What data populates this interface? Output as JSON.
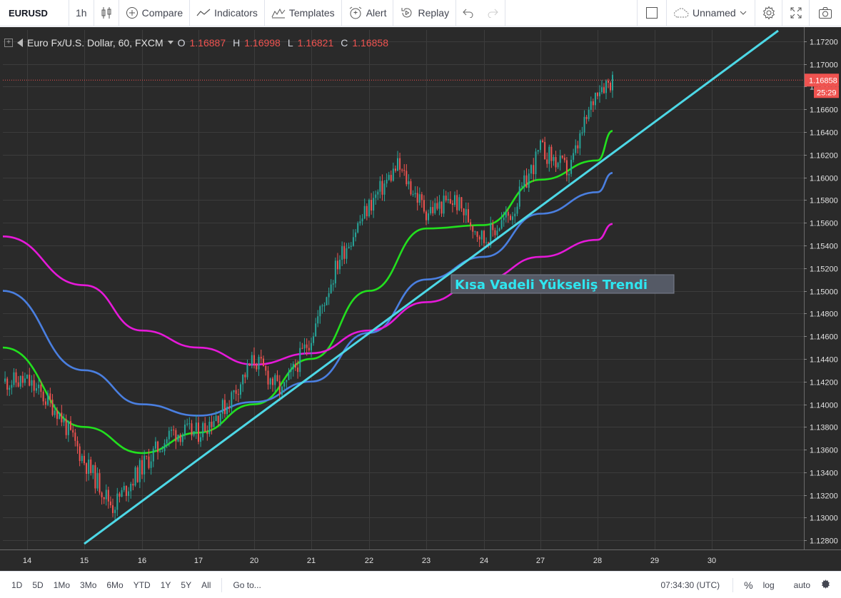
{
  "toolbar": {
    "symbol": "EURUSD",
    "interval": "1h",
    "compare": "Compare",
    "indicators": "Indicators",
    "templates": "Templates",
    "alert": "Alert",
    "replay": "Replay",
    "layout_name": "Unnamed"
  },
  "legend": {
    "title": "Euro Fx/U.S. Dollar, 60, FXCM",
    "open_label": "O",
    "open": "1.16887",
    "high_label": "H",
    "high": "1.16998",
    "low_label": "L",
    "low": "1.16821",
    "close_label": "C",
    "close": "1.16858"
  },
  "price_scale": {
    "labels": [
      "1.17200",
      "1.17000",
      "1.16800",
      "1.16600",
      "1.16400",
      "1.16200",
      "1.16000",
      "1.15800",
      "1.15600",
      "1.15400",
      "1.15200",
      "1.15000",
      "1.14800",
      "1.14600",
      "1.14400",
      "1.14200",
      "1.14000",
      "1.13800",
      "1.13600",
      "1.13400",
      "1.13200",
      "1.13000",
      "1.12800"
    ],
    "last_price": "1.16858",
    "countdown": "25:29"
  },
  "time_scale": {
    "labels": [
      "14",
      "15",
      "16",
      "17",
      "20",
      "21",
      "22",
      "23",
      "24",
      "27",
      "28",
      "29",
      "30"
    ]
  },
  "annotation": {
    "text": "Kısa Vadeli Yükseliş Trendi"
  },
  "bottombar": {
    "ranges": [
      "1D",
      "5D",
      "1Mo",
      "3Mo",
      "6Mo",
      "YTD",
      "1Y",
      "5Y",
      "All"
    ],
    "goto": "Go to...",
    "time": "07:34:30 (UTC)",
    "percent": "%",
    "log": "log",
    "auto": "auto"
  },
  "colors": {
    "background": "#2a2a2a",
    "grid": "#3c3c3c",
    "up": "#26a69a",
    "down": "#ef5350",
    "trendline": "#4dd8e6",
    "ma_green": "#22e01e",
    "ma_blue": "#4a7fe0",
    "ma_magenta": "#e619d9",
    "annotation_text": "#2ee6f0"
  },
  "chart_data": {
    "type": "candlestick",
    "symbol": "Euro Fx/U.S. Dollar",
    "interval": "60",
    "ylim": [
      1.1272,
      1.173
    ],
    "price_ticks": [
      1.128,
      1.13,
      1.132,
      1.134,
      1.136,
      1.138,
      1.14,
      1.142,
      1.144,
      1.146,
      1.148,
      1.15,
      1.152,
      1.154,
      1.156,
      1.158,
      1.16,
      1.162,
      1.164,
      1.166,
      1.168,
      1.17,
      1.172
    ],
    "session_closes": [
      {
        "session": "start",
        "price": 1.142
      },
      {
        "session": "14",
        "price": 1.142
      },
      {
        "session": "14b",
        "price": 1.1395
      },
      {
        "session": "15",
        "price": 1.135
      },
      {
        "session": "15b",
        "price": 1.131
      },
      {
        "session": "16",
        "price": 1.1345
      },
      {
        "session": "16b",
        "price": 1.1375
      },
      {
        "session": "17",
        "price": 1.1375
      },
      {
        "session": "17b",
        "price": 1.14
      },
      {
        "session": "20",
        "price": 1.144
      },
      {
        "session": "20b",
        "price": 1.141
      },
      {
        "session": "21",
        "price": 1.146
      },
      {
        "session": "21b",
        "price": 1.153
      },
      {
        "session": "22",
        "price": 1.1575
      },
      {
        "session": "22b",
        "price": 1.161
      },
      {
        "session": "23",
        "price": 1.157
      },
      {
        "session": "23b",
        "price": 1.158
      },
      {
        "session": "24",
        "price": 1.1545
      },
      {
        "session": "24b",
        "price": 1.157
      },
      {
        "session": "27",
        "price": 1.1625
      },
      {
        "session": "27b",
        "price": 1.1605
      },
      {
        "session": "28",
        "price": 1.168
      },
      {
        "session": "end",
        "price": 1.16858
      }
    ],
    "moving_averages": [
      {
        "name": "green",
        "points": [
          [
            "start",
            1.145
          ],
          [
            "15",
            1.138
          ],
          [
            "16",
            1.1357
          ],
          [
            "17",
            1.1375
          ],
          [
            "20",
            1.14
          ],
          [
            "21",
            1.144
          ],
          [
            "22",
            1.15
          ],
          [
            "23",
            1.1555
          ],
          [
            "24",
            1.1558
          ],
          [
            "27",
            1.1598
          ],
          [
            "28",
            1.1615
          ],
          [
            "end",
            1.1641
          ]
        ]
      },
      {
        "name": "blue",
        "points": [
          [
            "start",
            1.15
          ],
          [
            "15",
            1.143
          ],
          [
            "16",
            1.14
          ],
          [
            "17",
            1.139
          ],
          [
            "20",
            1.1402
          ],
          [
            "21",
            1.142
          ],
          [
            "22",
            1.1463
          ],
          [
            "23",
            1.151
          ],
          [
            "24",
            1.153
          ],
          [
            "27",
            1.1568
          ],
          [
            "28",
            1.1587
          ],
          [
            "end",
            1.1604
          ]
        ]
      },
      {
        "name": "magenta",
        "points": [
          [
            "start",
            1.1548
          ],
          [
            "15",
            1.1505
          ],
          [
            "16",
            1.1465
          ],
          [
            "17",
            1.145
          ],
          [
            "20",
            1.1435
          ],
          [
            "21",
            1.1445
          ],
          [
            "22",
            1.1465
          ],
          [
            "23",
            1.149
          ],
          [
            "24",
            1.151
          ],
          [
            "27",
            1.153
          ],
          [
            "28",
            1.1545
          ],
          [
            "end",
            1.1559
          ]
        ]
      }
    ],
    "trendline": {
      "from": [
        "15",
        1.1277
      ],
      "to": [
        "30",
        1.173
      ]
    }
  }
}
